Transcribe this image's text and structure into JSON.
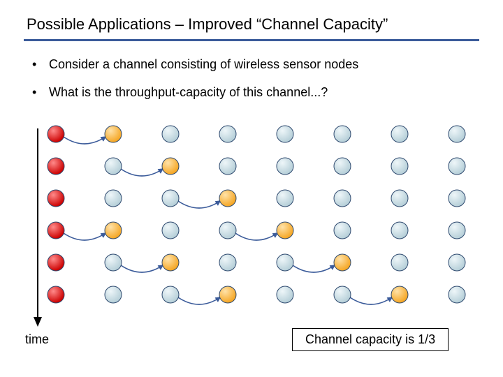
{
  "title": "Possible Applications – Improved “Channel Capacity”",
  "rule_color": "#3b5b9a",
  "bullets": [
    "Consider a channel consisting of wireless sensor nodes",
    "What is the throughput-capacity of this channel...?"
  ],
  "time_label": "time",
  "capacity_label": "Channel capacity is 1/3",
  "diagram": {
    "rows": 6,
    "cols": 8,
    "node_radius": 12,
    "col_spacing": 82,
    "row_spacing": 46,
    "colors": {
      "source": "#cc0000",
      "active": "#f5a623",
      "idle": "#b6cfd8",
      "stroke": "#2f4a6f",
      "arrow": "#3b5b9a"
    },
    "states": [
      [
        "source",
        "active",
        "idle",
        "idle",
        "idle",
        "idle",
        "idle",
        "idle"
      ],
      [
        "source",
        "idle",
        "active",
        "idle",
        "idle",
        "idle",
        "idle",
        "idle"
      ],
      [
        "source",
        "idle",
        "idle",
        "active",
        "idle",
        "idle",
        "idle",
        "idle"
      ],
      [
        "source",
        "active",
        "idle",
        "idle",
        "active",
        "idle",
        "idle",
        "idle"
      ],
      [
        "source",
        "idle",
        "active",
        "idle",
        "idle",
        "active",
        "idle",
        "idle"
      ],
      [
        "source",
        "idle",
        "idle",
        "active",
        "idle",
        "idle",
        "active",
        "idle"
      ]
    ],
    "arrows": [
      [
        [
          0,
          1
        ]
      ],
      [
        [
          1,
          2
        ]
      ],
      [
        [
          2,
          3
        ]
      ],
      [
        [
          0,
          1
        ],
        [
          3,
          4
        ]
      ],
      [
        [
          1,
          2
        ],
        [
          4,
          5
        ]
      ],
      [
        [
          2,
          3
        ],
        [
          5,
          6
        ]
      ]
    ]
  },
  "time_arrow": {
    "length": 278,
    "color": "#000000"
  }
}
